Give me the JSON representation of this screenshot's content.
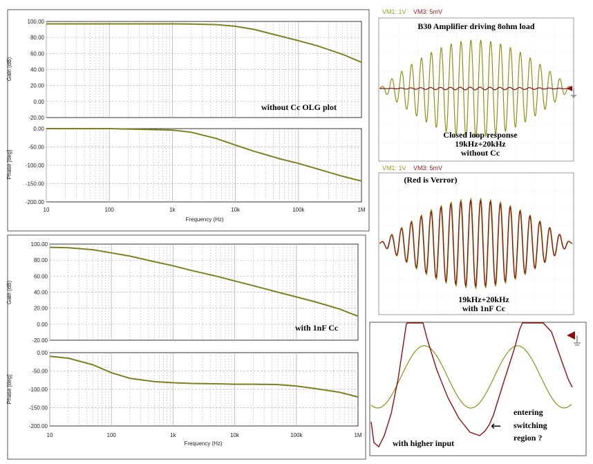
{
  "colors": {
    "olive": "#7f7f1e",
    "trace_olive": "#8f8f16",
    "trace_red": "#8c0f0f",
    "grid": "#b8b8b8",
    "axis_text": "#222222",
    "panel_border": "#555555",
    "scope_label_olive": "#9a9a2a",
    "scope_label_red": "#a11a1a"
  },
  "bode_plots": [
    {
      "gain": {
        "ylabel": "Gain (dB)",
        "yticks": [
          "100.00",
          "80.00",
          "60.00",
          "40.00",
          "20.00",
          "0.00",
          "-20.00"
        ],
        "annotation": "without Cc  OLG plot"
      },
      "phase": {
        "ylabel": "Phase [deg]",
        "yticks": [
          "0.00",
          "-50.00",
          "-100.00",
          "-150.00",
          "-200.00"
        ]
      },
      "xticks": [
        "10",
        "100",
        "1k",
        "10k",
        "100k",
        "1M"
      ],
      "xlabel": "Frequency (Hz)"
    },
    {
      "gain": {
        "ylabel": "Gain (dB)",
        "yticks": [
          "100.00",
          "80.00",
          "60.00",
          "40.00",
          "20.00",
          "0.00",
          "-20.00"
        ],
        "annotation": "with 1nF Cc"
      },
      "phase": {
        "ylabel": "Phase [deg]",
        "yticks": [
          "0.00",
          "-50.00",
          "-100.00",
          "-150.00",
          "-200.00"
        ]
      },
      "xticks": [
        "10",
        "100",
        "1k",
        "10k",
        "100k",
        "1M"
      ],
      "xlabel": "Frequency (Hz)"
    }
  ],
  "scopes": [
    {
      "channel_labels": [
        "VM1: 1V",
        "VM3: 5mV"
      ],
      "title": "B30 Amplifier driving 8ohm load",
      "caption": [
        "Closed loop response",
        "19kHz+20kHz",
        "without Cc"
      ]
    },
    {
      "channel_labels": [
        "VM1: 1V",
        "VM3: 5mV"
      ],
      "title": "(Red is Verror)",
      "caption": [
        "19kHz+20kHz",
        "with 1nF Cc"
      ]
    },
    {
      "annotation_left": "with higher input",
      "annotation_right": [
        "entering",
        "switching",
        "region  ?"
      ],
      "arrow": "←"
    }
  ],
  "chart_data": [
    {
      "type": "line",
      "title": "",
      "xlabel": "Frequency (Hz)",
      "ylabel": "Gain (dB)",
      "x_scale": "log",
      "xlim": [
        10,
        1000000
      ],
      "ylim": [
        -20,
        100
      ],
      "grid": true,
      "series": [
        {
          "x": [
            10,
            100,
            1000,
            2000,
            5000,
            10000,
            20000,
            50000,
            100000,
            200000,
            500000,
            1000000
          ],
          "y": [
            97,
            97,
            97,
            96.8,
            96,
            94,
            90,
            82,
            76,
            69.5,
            59,
            49
          ]
        }
      ],
      "annotations": [
        "without Cc  OLG plot"
      ]
    },
    {
      "type": "line",
      "title": "",
      "xlabel": "Frequency (Hz)",
      "ylabel": "Phase [deg]",
      "x_scale": "log",
      "xlim": [
        10,
        1000000
      ],
      "ylim": [
        -200,
        0
      ],
      "grid": true,
      "series": [
        {
          "x": [
            10,
            100,
            1000,
            2000,
            5000,
            10000,
            20000,
            50000,
            100000,
            200000,
            500000,
            1000000
          ],
          "y": [
            0,
            0,
            -4,
            -10,
            -27,
            -45,
            -62,
            -82,
            -95,
            -110,
            -130,
            -143
          ]
        }
      ]
    },
    {
      "type": "line",
      "title": "",
      "xlabel": "Frequency (Hz)",
      "ylabel": "Gain (dB)",
      "x_scale": "log",
      "xlim": [
        10,
        1000000
      ],
      "ylim": [
        -20,
        100
      ],
      "grid": true,
      "series": [
        {
          "x": [
            10,
            20,
            50,
            100,
            200,
            500,
            1000,
            2000,
            5000,
            10000,
            20000,
            50000,
            100000,
            200000,
            500000,
            1000000
          ],
          "y": [
            96,
            95.5,
            93,
            89,
            85,
            78,
            73,
            67,
            60,
            54,
            48,
            40,
            34,
            28,
            19,
            10
          ]
        }
      ],
      "annotations": [
        "with 1nF Cc"
      ]
    },
    {
      "type": "line",
      "title": "",
      "xlabel": "Frequency (Hz)",
      "ylabel": "Phase [deg]",
      "x_scale": "log",
      "xlim": [
        10,
        1000000
      ],
      "ylim": [
        -200,
        0
      ],
      "grid": true,
      "series": [
        {
          "x": [
            10,
            20,
            50,
            100,
            200,
            500,
            1000,
            2000,
            5000,
            10000,
            20000,
            50000,
            100000,
            200000,
            500000,
            1000000
          ],
          "y": [
            -10,
            -15,
            -33,
            -55,
            -70,
            -79,
            -82,
            -84,
            -85,
            -86,
            -86,
            -87,
            -91,
            -98,
            -108,
            -121
          ]
        }
      ]
    }
  ]
}
